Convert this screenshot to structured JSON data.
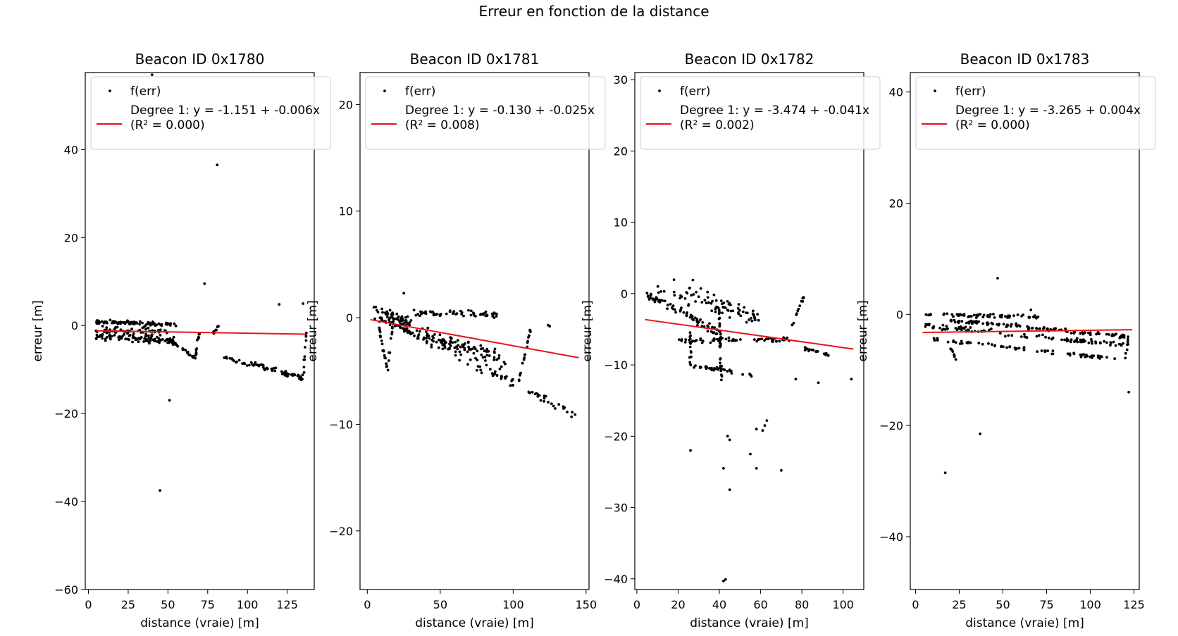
{
  "figure": {
    "suptitle": "Erreur en fonction de la distance"
  },
  "colors": {
    "points": "#000000",
    "fit_line": "#e8141c",
    "axes": "#000000",
    "legend_border": "#cccccc"
  },
  "chart_data": [
    {
      "type": "scatter",
      "title": "Beacon ID 0x1780",
      "xlabel": "distance (vraie) [m]",
      "ylabel": "erreur [m]",
      "xlim": [
        -2,
        142
      ],
      "ylim": [
        -60,
        57.5
      ],
      "xticks": [
        0,
        25,
        50,
        75,
        100,
        125
      ],
      "yticks": [
        -60,
        -40,
        -20,
        0,
        20,
        40
      ],
      "xtick_labels": [
        "0",
        "25",
        "50",
        "75",
        "100",
        "125"
      ],
      "ytick_labels": [
        "−60",
        "−40",
        "−20",
        "0",
        "20",
        "40"
      ],
      "legend": {
        "placement": "top",
        "scatter_label": "f(err)",
        "fit_label_1": "Degree 1: y = -1.151 + -0.006x",
        "fit_label_2": "(R² = 0.000)"
      },
      "fit": {
        "intercept": -1.151,
        "slope": -0.006,
        "r2": 0.0,
        "x_range": [
          5,
          137
        ]
      },
      "clusters": [
        {
          "from": [
            5,
            0.8
          ],
          "to": [
            55,
            0.2
          ],
          "n": 90,
          "spread": 0.6
        },
        {
          "from": [
            5,
            -2.5
          ],
          "to": [
            55,
            -3.5
          ],
          "n": 90,
          "spread": 1.1
        },
        {
          "from": [
            5,
            -1.0
          ],
          "to": [
            50,
            -1.5
          ],
          "n": 60,
          "spread": 1.6
        },
        {
          "from": [
            50,
            -3.0
          ],
          "to": [
            67,
            -7.5
          ],
          "n": 25,
          "spread": 0.6
        },
        {
          "from": [
            67,
            -7.5
          ],
          "to": [
            70,
            -1.0
          ],
          "n": 14,
          "spread": 0.4
        },
        {
          "from": [
            78,
            -2.0
          ],
          "to": [
            82,
            0.0
          ],
          "n": 10,
          "spread": 0.5
        },
        {
          "from": [
            85,
            -7.0
          ],
          "to": [
            135,
            -12.0
          ],
          "n": 70,
          "spread": 0.9
        },
        {
          "from": [
            135,
            -11.5
          ],
          "to": [
            137,
            -1.5
          ],
          "n": 10,
          "spread": 0.3
        }
      ],
      "outliers": [
        [
          40,
          57
        ],
        [
          81,
          36.5
        ],
        [
          73,
          9.5
        ],
        [
          51,
          -17
        ],
        [
          45,
          -37.5
        ],
        [
          135,
          5
        ],
        [
          120,
          4.8
        ]
      ]
    },
    {
      "type": "scatter",
      "title": "Beacon ID 0x1781",
      "xlabel": "distance (vraie) [m]",
      "ylabel": "erreur [m]",
      "xlim": [
        -5,
        152
      ],
      "ylim": [
        -25.5,
        23
      ],
      "xticks": [
        0,
        50,
        100,
        150
      ],
      "yticks": [
        -20,
        -10,
        0,
        10,
        20
      ],
      "xtick_labels": [
        "0",
        "50",
        "100",
        "150"
      ],
      "ytick_labels": [
        "−20",
        "−10",
        "0",
        "10",
        "20"
      ],
      "legend": {
        "placement": "top",
        "scatter_label": "f(err)",
        "fit_label_1": "Degree 1: y = -0.130 + -0.025x",
        "fit_label_2": "(R² = 0.008)"
      },
      "fit": {
        "intercept": -0.13,
        "slope": -0.025,
        "r2": 0.008,
        "x_range": [
          2,
          145
        ]
      },
      "clusters": [
        {
          "from": [
            3,
            1.0
          ],
          "to": [
            30,
            -0.5
          ],
          "n": 40,
          "spread": 0.6
        },
        {
          "from": [
            30,
            0.5
          ],
          "to": [
            90,
            0.3
          ],
          "n": 60,
          "spread": 0.5
        },
        {
          "from": [
            5,
            0.0
          ],
          "to": [
            95,
            -4.0
          ],
          "n": 110,
          "spread": 0.9
        },
        {
          "from": [
            20,
            -0.5
          ],
          "to": [
            100,
            -6.0
          ],
          "n": 80,
          "spread": 1.0
        },
        {
          "from": [
            8,
            -1.0
          ],
          "to": [
            14,
            -5.0
          ],
          "n": 20,
          "spread": 0.3
        },
        {
          "from": [
            14,
            -5.0
          ],
          "to": [
            18,
            0.0
          ],
          "n": 12,
          "spread": 0.3
        },
        {
          "from": [
            103,
            -6.5
          ],
          "to": [
            112,
            -1.0
          ],
          "n": 20,
          "spread": 0.3
        },
        {
          "from": [
            110,
            -7.0
          ],
          "to": [
            145,
            -9.0
          ],
          "n": 25,
          "spread": 0.6
        }
      ],
      "outliers": [
        [
          124,
          -0.7
        ],
        [
          125,
          -0.8
        ],
        [
          25,
          2.3
        ],
        [
          140,
          -9.3
        ]
      ]
    },
    {
      "type": "scatter",
      "title": "Beacon ID 0x1782",
      "xlabel": "distance (vraie) [m]",
      "ylabel": "erreur [m]",
      "xlim": [
        -1,
        110
      ],
      "ylim": [
        -41.5,
        31
      ],
      "xticks": [
        0,
        20,
        40,
        60,
        80,
        100
      ],
      "yticks": [
        -40,
        -30,
        -20,
        -10,
        0,
        10,
        20,
        30
      ],
      "xtick_labels": [
        "0",
        "20",
        "40",
        "60",
        "80",
        "100"
      ],
      "ytick_labels": [
        "−40",
        "−30",
        "−20",
        "−10",
        "0",
        "10",
        "20",
        "30"
      ],
      "legend": {
        "placement": "top",
        "scatter_label": "f(err)",
        "fit_label_1": "Degree 1: y = -3.474 + -0.041x",
        "fit_label_2": "(R² = 0.002)"
      },
      "fit": {
        "intercept": -3.474,
        "slope": -0.041,
        "r2": 0.002,
        "x_range": [
          4,
          105
        ]
      },
      "clusters": [
        {
          "from": [
            5,
            0.0
          ],
          "to": [
            40,
            -5.5
          ],
          "n": 70,
          "spread": 1.0
        },
        {
          "from": [
            10,
            0.5
          ],
          "to": [
            60,
            -3.5
          ],
          "n": 50,
          "spread": 1.5
        },
        {
          "from": [
            20,
            -6.5
          ],
          "to": [
            75,
            -6.5
          ],
          "n": 60,
          "spread": 0.5
        },
        {
          "from": [
            25,
            -10.0
          ],
          "to": [
            60,
            -11.5
          ],
          "n": 35,
          "spread": 0.4
        },
        {
          "from": [
            40,
            -2.0
          ],
          "to": [
            41,
            -12.0
          ],
          "n": 30,
          "spread": 0.5
        },
        {
          "from": [
            26,
            -5.0
          ],
          "to": [
            26,
            -10.0
          ],
          "n": 15,
          "spread": 0.3
        },
        {
          "from": [
            75,
            -4.5
          ],
          "to": [
            81,
            -0.5
          ],
          "n": 14,
          "spread": 0.3
        },
        {
          "from": [
            80,
            -7.5
          ],
          "to": [
            95,
            -8.8
          ],
          "n": 20,
          "spread": 0.3
        },
        {
          "from": [
            15,
            1.5
          ],
          "to": [
            60,
            -3.0
          ],
          "n": 30,
          "spread": 2.0
        }
      ],
      "outliers": [
        [
          26,
          -22
        ],
        [
          44,
          -20
        ],
        [
          45,
          -20.5
        ],
        [
          42,
          -24.5
        ],
        [
          45,
          -27.5
        ],
        [
          55,
          -22.5
        ],
        [
          58,
          -24.5
        ],
        [
          58,
          -19
        ],
        [
          62,
          -18.5
        ],
        [
          63,
          -17.8
        ],
        [
          61,
          -19.2
        ],
        [
          70,
          -24.8
        ],
        [
          42,
          -40.3
        ],
        [
          43,
          -40.1
        ],
        [
          104,
          -12
        ],
        [
          88,
          -12.5
        ],
        [
          77,
          -12
        ]
      ]
    },
    {
      "type": "scatter",
      "title": "Beacon ID 0x1783",
      "xlabel": "distance (vraie) [m]",
      "ylabel": "erreur [m]",
      "xlim": [
        -3,
        128
      ],
      "ylim": [
        -49.5,
        43.5
      ],
      "xticks": [
        0,
        25,
        50,
        75,
        100,
        125
      ],
      "yticks": [
        -40,
        -20,
        0,
        20,
        40
      ],
      "xtick_labels": [
        "0",
        "25",
        "50",
        "75",
        "100",
        "125"
      ],
      "ytick_labels": [
        "−40",
        "−20",
        "0",
        "20",
        "40"
      ],
      "legend": {
        "placement": "top",
        "scatter_label": "f(err)",
        "fit_label_1": "Degree 1: y = -3.265 + 0.004x",
        "fit_label_2": "(R² = 0.000)"
      },
      "fit": {
        "intercept": -3.265,
        "slope": 0.004,
        "r2": 0.0,
        "x_range": [
          4,
          124
        ]
      },
      "clusters": [
        {
          "from": [
            5,
            0.0
          ],
          "to": [
            70,
            -0.5
          ],
          "n": 60,
          "spread": 0.5
        },
        {
          "from": [
            20,
            -1.0
          ],
          "to": [
            120,
            -4.0
          ],
          "n": 110,
          "spread": 0.6
        },
        {
          "from": [
            5,
            -2.0
          ],
          "to": [
            120,
            -5.5
          ],
          "n": 100,
          "spread": 0.7
        },
        {
          "from": [
            10,
            -4.5
          ],
          "to": [
            115,
            -8.0
          ],
          "n": 70,
          "spread": 0.5
        },
        {
          "from": [
            20,
            -6.0
          ],
          "to": [
            23,
            -8.0
          ],
          "n": 8,
          "spread": 0.3
        },
        {
          "from": [
            120,
            -8.0
          ],
          "to": [
            122,
            -4.0
          ],
          "n": 8,
          "spread": 0.3
        }
      ],
      "outliers": [
        [
          47,
          6.5
        ],
        [
          66,
          0.8
        ],
        [
          122,
          -14
        ],
        [
          37,
          -21.5
        ],
        [
          17,
          -28.5
        ]
      ]
    }
  ]
}
